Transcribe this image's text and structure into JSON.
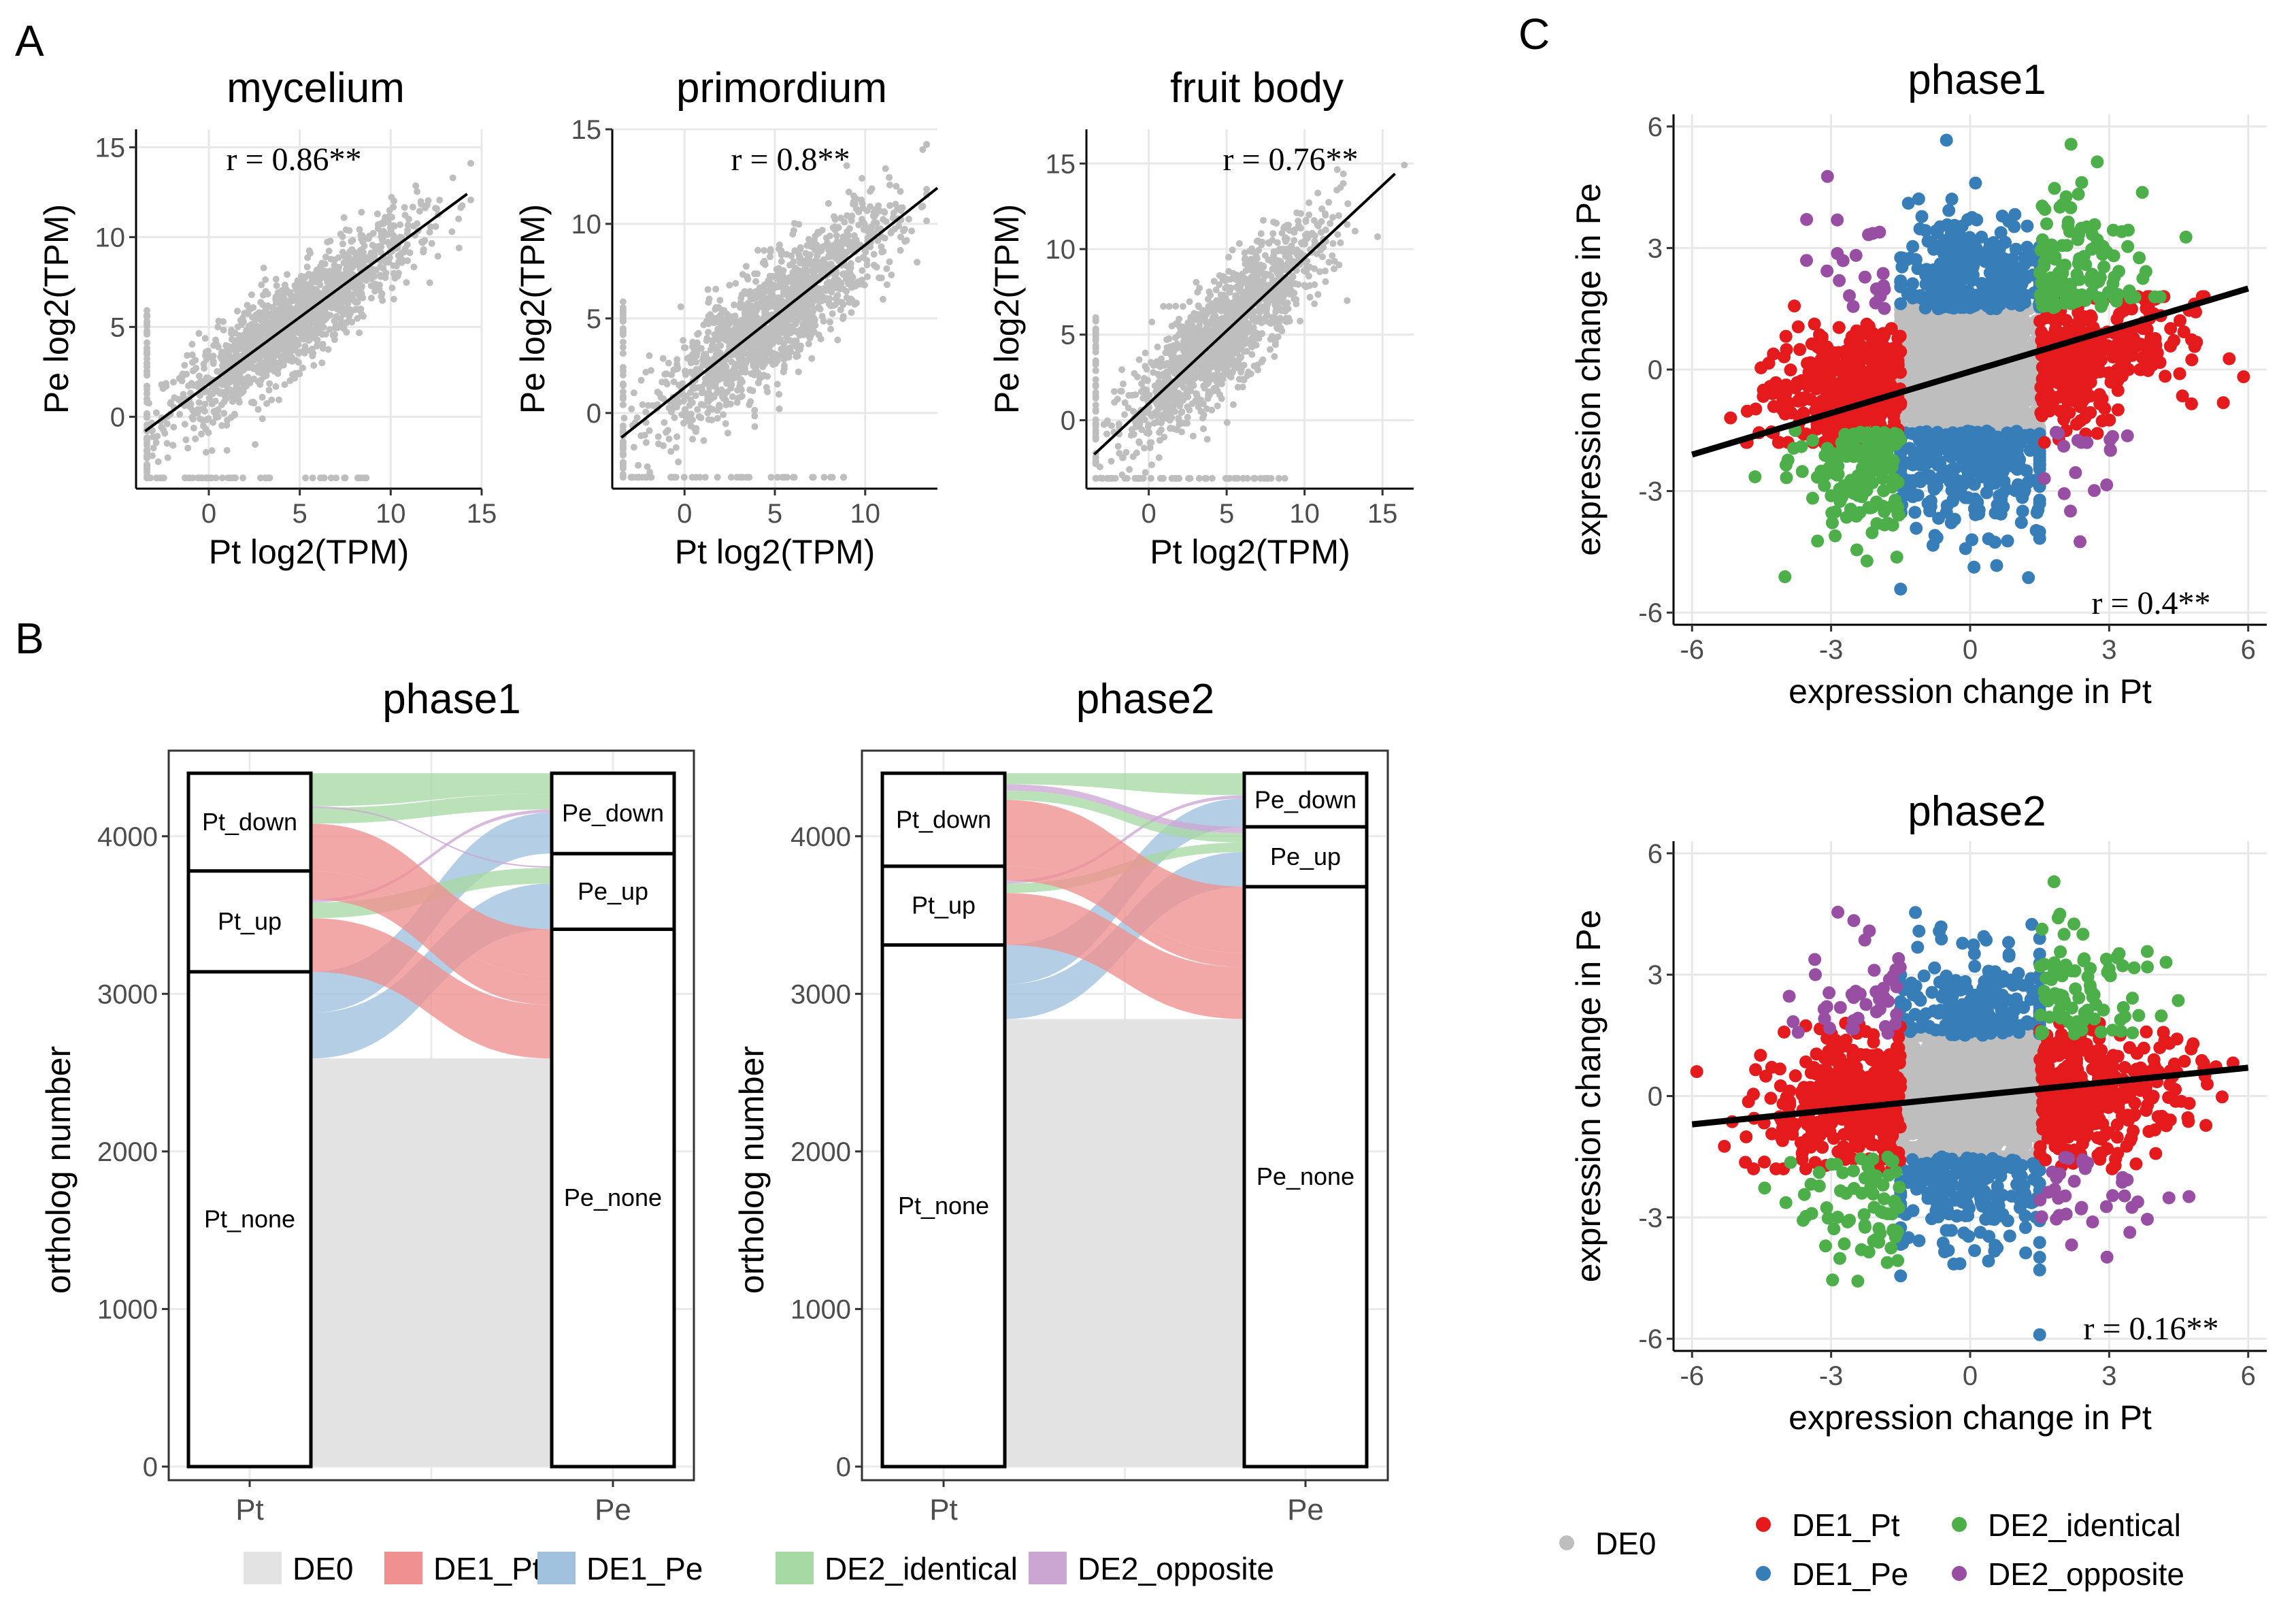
{
  "panel_labels": {
    "a": "A",
    "b": "B",
    "c": "C"
  },
  "colors": {
    "DE0": "#bebebe",
    "DE1_Pt": "#e41a1c",
    "DE1_Pe": "#377eb8",
    "DE2_identical": "#4daf4a",
    "DE2_opposite": "#984ea3",
    "alluvial_DE0": "#e3e3e3",
    "alluvial_DE1_Pt": "#f09090",
    "alluvial_DE1_Pe": "#9fc1de",
    "alluvial_DE2_identical": "#a6d9a3",
    "alluvial_DE2_opposite": "#cca6d3"
  },
  "chart_data": [
    {
      "id": "A1",
      "type": "scatter",
      "title": "mycelium",
      "xlabel": "Pt log2(TPM)",
      "ylabel": "Pe log2(TPM)",
      "xlim": [
        -4,
        15
      ],
      "ylim": [
        -4,
        16
      ],
      "xticks": [
        0,
        5,
        10,
        15
      ],
      "yticks": [
        0,
        5,
        10,
        15
      ],
      "annotation": "r = 0.86**",
      "fit_line": {
        "x": [
          -3.5,
          14.2
        ],
        "y": [
          -0.8,
          12.4
        ]
      },
      "point_color": "#bebebe",
      "n_points": 1500,
      "cloud": {
        "x_mean": 4.5,
        "x_sd": 3.4,
        "slope": 0.74,
        "intercept": 1.8,
        "noise_sd": 1.3
      }
    },
    {
      "id": "A2",
      "type": "scatter",
      "title": "primordium",
      "xlabel": "Pt log2(TPM)",
      "ylabel": "Pe log2(TPM)",
      "xlim": [
        -4,
        14
      ],
      "ylim": [
        -4,
        15
      ],
      "xticks": [
        0,
        5,
        10
      ],
      "yticks": [
        0,
        5,
        10,
        15
      ],
      "annotation": "r = 0.8**",
      "fit_line": {
        "x": [
          -3.5,
          14.0
        ],
        "y": [
          -1.3,
          11.9
        ]
      },
      "point_color": "#bebebe",
      "n_points": 1500,
      "cloud": {
        "x_mean": 5.0,
        "x_sd": 3.3,
        "slope": 0.76,
        "intercept": 1.3,
        "noise_sd": 1.5
      }
    },
    {
      "id": "A3",
      "type": "scatter",
      "title": "fruit body",
      "xlabel": "Pt log2(TPM)",
      "ylabel": "Pe log2(TPM)",
      "xlim": [
        -4,
        17
      ],
      "ylim": [
        -4,
        17
      ],
      "xticks": [
        0,
        5,
        10,
        15
      ],
      "yticks": [
        0,
        5,
        10,
        15
      ],
      "annotation": "r = 0.76**",
      "fit_line": {
        "x": [
          -3.5,
          15.8
        ],
        "y": [
          -2.0,
          14.4
        ]
      },
      "point_color": "#bebebe",
      "n_points": 1500,
      "cloud": {
        "x_mean": 4.8,
        "x_sd": 3.1,
        "slope": 0.85,
        "intercept": 1.0,
        "noise_sd": 1.6
      }
    },
    {
      "id": "B1",
      "type": "alluvial",
      "title": "phase1",
      "ylabel": "ortholog number",
      "xcats": [
        "Pt",
        "Pe"
      ],
      "ylim": [
        0,
        4500
      ],
      "yticks": [
        0,
        1000,
        2000,
        3000,
        4000
      ],
      "left_strata": [
        {
          "label": "Pt_none",
          "from": 0,
          "to": 3140
        },
        {
          "label": "Pt_up",
          "from": 3140,
          "to": 3780
        },
        {
          "label": "Pt_down",
          "from": 3780,
          "to": 4400
        }
      ],
      "right_strata": [
        {
          "label": "Pe_none",
          "from": 0,
          "to": 3410
        },
        {
          "label": "Pe_up",
          "from": 3410,
          "to": 3890
        },
        {
          "label": "Pe_down",
          "from": 3890,
          "to": 4400
        }
      ],
      "flows": [
        {
          "cls": "DE0",
          "l": [
            0,
            2590
          ],
          "r": [
            0,
            2590
          ]
        },
        {
          "cls": "DE1_Pe",
          "l": [
            2590,
            2880
          ],
          "r": [
            3410,
            3700
          ]
        },
        {
          "cls": "DE1_Pe",
          "l": [
            2880,
            3140
          ],
          "r": [
            3890,
            4150
          ]
        },
        {
          "cls": "DE1_Pt",
          "l": [
            3140,
            3480
          ],
          "r": [
            2590,
            2930
          ]
        },
        {
          "cls": "DE2_identical",
          "l": [
            3480,
            3580
          ],
          "r": [
            3700,
            3800
          ]
        },
        {
          "cls": "DE2_opposite",
          "l": [
            3580,
            3600
          ],
          "r": [
            4150,
            4170
          ]
        },
        {
          "cls": "DE1_Pt",
          "l": [
            3600,
            3780
          ],
          "r": [
            2930,
            3110
          ]
        },
        {
          "cls": "DE1_Pt",
          "l": [
            3780,
            4080
          ],
          "r": [
            3110,
            3410
          ]
        },
        {
          "cls": "DE2_identical",
          "l": [
            4080,
            4180
          ],
          "r": [
            4170,
            4270
          ]
        },
        {
          "cls": "DE2_opposite",
          "l": [
            4180,
            4190
          ],
          "r": [
            3800,
            3810
          ]
        },
        {
          "cls": "DE2_identical",
          "l": [
            4190,
            4400
          ],
          "r": [
            4270,
            4400
          ]
        }
      ]
    },
    {
      "id": "B2",
      "type": "alluvial",
      "title": "phase2",
      "ylabel": "ortholog number",
      "xcats": [
        "Pt",
        "Pe"
      ],
      "ylim": [
        0,
        4500
      ],
      "yticks": [
        0,
        1000,
        2000,
        3000,
        4000
      ],
      "left_strata": [
        {
          "label": "Pt_none",
          "from": 0,
          "to": 3310
        },
        {
          "label": "Pt_up",
          "from": 3310,
          "to": 3810
        },
        {
          "label": "Pt_down",
          "from": 3810,
          "to": 4400
        }
      ],
      "right_strata": [
        {
          "label": "Pe_none",
          "from": 0,
          "to": 3680
        },
        {
          "label": "Pe_up",
          "from": 3680,
          "to": 4060
        },
        {
          "label": "Pe_down",
          "from": 4060,
          "to": 4400
        }
      ],
      "flows": [
        {
          "cls": "DE0",
          "l": [
            0,
            2840
          ],
          "r": [
            0,
            2840
          ]
        },
        {
          "cls": "DE1_Pe",
          "l": [
            2840,
            3060
          ],
          "r": [
            3680,
            3900
          ]
        },
        {
          "cls": "DE1_Pe",
          "l": [
            3060,
            3310
          ],
          "r": [
            4060,
            4240
          ]
        },
        {
          "cls": "DE1_Pt",
          "l": [
            3310,
            3640
          ],
          "r": [
            2840,
            3170
          ]
        },
        {
          "cls": "DE2_identical",
          "l": [
            3640,
            3700
          ],
          "r": [
            3900,
            3960
          ]
        },
        {
          "cls": "DE2_opposite",
          "l": [
            3700,
            3720
          ],
          "r": [
            4240,
            4260
          ]
        },
        {
          "cls": "DE1_Pt",
          "l": [
            3720,
            3810
          ],
          "r": [
            3170,
            3260
          ]
        },
        {
          "cls": "DE1_Pt",
          "l": [
            3810,
            4230
          ],
          "r": [
            3260,
            3680
          ]
        },
        {
          "cls": "DE2_identical",
          "l": [
            4230,
            4290
          ],
          "r": [
            3960,
            4020
          ]
        },
        {
          "cls": "DE2_opposite",
          "l": [
            4290,
            4330
          ],
          "r": [
            4020,
            4060
          ]
        },
        {
          "cls": "DE2_identical",
          "l": [
            4330,
            4400
          ],
          "r": [
            4260,
            4400
          ]
        }
      ]
    },
    {
      "id": "C1",
      "type": "scatter",
      "title": "phase1",
      "xlabel": "expression change in Pt",
      "ylabel": "expression change in Pe",
      "xlim": [
        -6.4,
        6.4
      ],
      "ylim": [
        -6.3,
        6.3
      ],
      "xticks": [
        -6,
        -3,
        0,
        3,
        6
      ],
      "yticks": [
        -6,
        -3,
        0,
        3,
        6
      ],
      "annotation": "r = 0.4**",
      "fit_line": {
        "x": [
          -6.0,
          6.0
        ],
        "y": [
          -2.1,
          2.0
        ]
      },
      "threshold": 1.5,
      "counts": {
        "DE0": 1700,
        "DE1_Pt": 700,
        "DE1_Pe": 550,
        "DE2_identical": 300,
        "DE2_opposite": 40
      }
    },
    {
      "id": "C2",
      "type": "scatter",
      "title": "phase2",
      "xlabel": "expression change in Pt",
      "ylabel": "expression change in Pe",
      "xlim": [
        -6.4,
        6.4
      ],
      "ylim": [
        -6.3,
        6.3
      ],
      "xticks": [
        -6,
        -3,
        0,
        3,
        6
      ],
      "yticks": [
        -6,
        -3,
        0,
        3,
        6
      ],
      "annotation": "r = 0.16**",
      "fit_line": {
        "x": [
          -6.0,
          6.0
        ],
        "y": [
          -0.7,
          0.7
        ]
      },
      "threshold": 1.5,
      "counts": {
        "DE0": 1700,
        "DE1_Pt": 800,
        "DE1_Pe": 450,
        "DE2_identical": 160,
        "DE2_opposite": 80
      }
    }
  ],
  "legend_b": [
    {
      "label": "DE0",
      "cls": "DE0"
    },
    {
      "label": "DE1_Pt",
      "cls": "DE1_Pt"
    },
    {
      "label": "DE1_Pe",
      "cls": "DE1_Pe"
    },
    {
      "label": "DE2_identical",
      "cls": "DE2_identical"
    },
    {
      "label": "DE2_opposite",
      "cls": "DE2_opposite"
    }
  ],
  "legend_c": [
    {
      "label": "DE0",
      "cls": "DE0"
    },
    {
      "label": "DE1_Pt",
      "cls": "DE1_Pt"
    },
    {
      "label": "DE1_Pe",
      "cls": "DE1_Pe"
    },
    {
      "label": "DE2_identical",
      "cls": "DE2_identical"
    },
    {
      "label": "DE2_opposite",
      "cls": "DE2_opposite"
    }
  ]
}
